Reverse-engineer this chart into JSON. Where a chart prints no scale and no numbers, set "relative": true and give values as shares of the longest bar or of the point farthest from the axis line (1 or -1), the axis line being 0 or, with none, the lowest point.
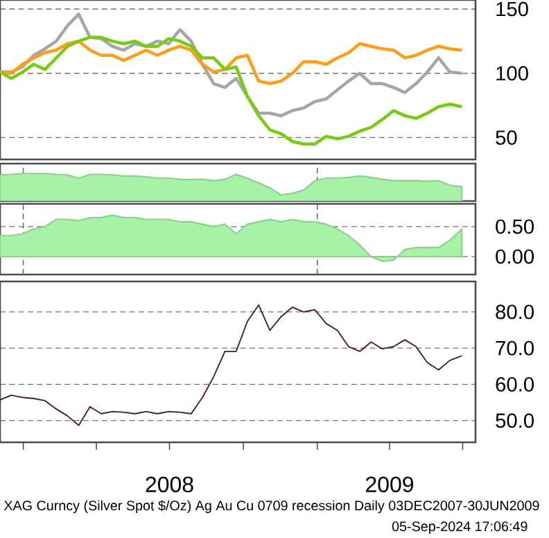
{
  "chart_data": [
    {
      "type": "line",
      "tick_labels": "y",
      "grid": "y",
      "x": [
        "2007-12-03",
        "2007-12-17",
        "2007-12-31",
        "2008-01-14",
        "2008-01-28",
        "2008-02-11",
        "2008-02-25",
        "2008-03-10",
        "2008-03-24",
        "2008-04-07",
        "2008-04-21",
        "2008-05-05",
        "2008-05-19",
        "2008-06-02",
        "2008-06-16",
        "2008-06-30",
        "2008-07-14",
        "2008-07-28",
        "2008-08-11",
        "2008-08-25",
        "2008-09-08",
        "2008-09-22",
        "2008-10-06",
        "2008-10-20",
        "2008-11-03",
        "2008-11-17",
        "2008-12-01",
        "2008-12-15",
        "2008-12-29",
        "2009-01-12",
        "2009-01-26",
        "2009-02-09",
        "2009-02-23",
        "2009-03-09",
        "2009-03-23",
        "2009-04-06",
        "2009-04-20",
        "2009-05-04",
        "2009-05-18",
        "2009-06-01",
        "2009-06-15",
        "2009-06-30"
      ],
      "xlim": [
        "2007-12-03",
        "2009-07-17"
      ],
      "ylim": [
        33,
        157
      ],
      "yticks": [
        50,
        100,
        150
      ],
      "series": [
        {
          "color": "#a6a6a6",
          "values": [
            101,
            101,
            105,
            114,
            119,
            125,
            137,
            146,
            128,
            127,
            121,
            118,
            123,
            121,
            125,
            123,
            134,
            125,
            107,
            92,
            89,
            96,
            82,
            69,
            69,
            67,
            71,
            73,
            78,
            80,
            87,
            94,
            100,
            92,
            92,
            89,
            85,
            92,
            101,
            112,
            101,
            100
          ]
        },
        {
          "color": "#ff9d1a",
          "values": [
            101,
            100,
            107,
            112,
            116,
            118,
            123,
            125,
            118,
            114,
            114,
            110,
            114,
            118,
            114,
            118,
            121,
            118,
            107,
            101,
            103,
            112,
            114,
            94,
            92,
            94,
            100,
            109,
            109,
            107,
            112,
            116,
            123,
            121,
            119,
            118,
            112,
            114,
            118,
            121,
            119,
            118
          ]
        },
        {
          "color": "#77cc11",
          "values": [
            101,
            96,
            101,
            107,
            103,
            112,
            121,
            125,
            128,
            128,
            125,
            123,
            125,
            121,
            121,
            127,
            125,
            121,
            112,
            112,
            103,
            105,
            82,
            67,
            56,
            53,
            47,
            45,
            45,
            51,
            49,
            51,
            55,
            58,
            64,
            71,
            67,
            65,
            69,
            74,
            76,
            74
          ]
        }
      ]
    },
    {
      "type": "area",
      "relative": true,
      "tick_labels": false,
      "x": [
        "2007-12-03",
        "2007-12-17",
        "2007-12-31",
        "2008-01-14",
        "2008-01-28",
        "2008-02-11",
        "2008-02-25",
        "2008-03-10",
        "2008-03-24",
        "2008-04-07",
        "2008-04-21",
        "2008-05-05",
        "2008-05-19",
        "2008-06-02",
        "2008-06-16",
        "2008-06-30",
        "2008-07-14",
        "2008-07-28",
        "2008-08-11",
        "2008-08-25",
        "2008-09-08",
        "2008-09-22",
        "2008-10-06",
        "2008-10-20",
        "2008-11-03",
        "2008-11-17",
        "2008-12-01",
        "2008-12-15",
        "2008-12-29",
        "2009-01-12",
        "2009-01-26",
        "2009-02-09",
        "2009-02-23",
        "2009-03-09",
        "2009-03-23",
        "2009-04-06",
        "2009-04-20",
        "2009-05-04",
        "2009-05-18",
        "2009-06-01",
        "2009-06-15",
        "2009-06-30"
      ],
      "xlim": [
        "2007-12-03",
        "2009-07-17"
      ],
      "ref_lines": [
        {
          "axis": "x",
          "value": "2008-01-01",
          "line_style": "dashed"
        },
        {
          "axis": "x",
          "value": "2009-01-01",
          "line_style": "dashed"
        }
      ],
      "series": [
        {
          "color": "#a8f2a8",
          "values": [
            0.95,
            0.97,
            1,
            1,
            1,
            0.97,
            0.95,
            0.83,
            0.97,
            0.97,
            0.95,
            0.91,
            0.91,
            0.88,
            0.83,
            0.83,
            0.79,
            0.78,
            0.79,
            0.74,
            0.79,
            0.97,
            0.83,
            0.66,
            0.48,
            0.22,
            0.28,
            0.4,
            0.74,
            0.83,
            0.83,
            0.86,
            0.91,
            0.86,
            0.79,
            0.74,
            0.74,
            0.74,
            0.72,
            0.74,
            0.57,
            0.52
          ]
        }
      ]
    },
    {
      "type": "area",
      "tick_labels": "y",
      "grid": "y",
      "x": [
        "2007-12-03",
        "2007-12-17",
        "2007-12-31",
        "2008-01-14",
        "2008-01-28",
        "2008-02-11",
        "2008-02-25",
        "2008-03-10",
        "2008-03-24",
        "2008-04-07",
        "2008-04-21",
        "2008-05-05",
        "2008-05-19",
        "2008-06-02",
        "2008-06-16",
        "2008-06-30",
        "2008-07-14",
        "2008-07-28",
        "2008-08-11",
        "2008-08-25",
        "2008-09-08",
        "2008-09-22",
        "2008-10-06",
        "2008-10-20",
        "2008-11-03",
        "2008-11-17",
        "2008-12-01",
        "2008-12-15",
        "2008-12-29",
        "2009-01-12",
        "2009-01-26",
        "2009-02-09",
        "2009-02-23",
        "2009-03-09",
        "2009-03-23",
        "2009-04-06",
        "2009-04-20",
        "2009-05-04",
        "2009-05-18",
        "2009-06-01",
        "2009-06-15",
        "2009-06-30"
      ],
      "xlim": [
        "2007-12-03",
        "2009-07-17"
      ],
      "ylim": [
        -0.3,
        0.88
      ],
      "yticks": [
        {
          "value": 0,
          "label": "0.00"
        },
        {
          "value": 0.5,
          "label": "0.50"
        }
      ],
      "ref_lines": [
        {
          "axis": "x",
          "value": "2008-01-01",
          "line_style": "dashed"
        },
        {
          "axis": "x",
          "value": "2009-01-01",
          "line_style": "dashed"
        }
      ],
      "series": [
        {
          "color": "#a8f2a8",
          "values": [
            0.35,
            0.35,
            0.38,
            0.46,
            0.5,
            0.62,
            0.62,
            0.6,
            0.65,
            0.65,
            0.69,
            0.65,
            0.65,
            0.62,
            0.62,
            0.62,
            0.58,
            0.58,
            0.54,
            0.5,
            0.54,
            0.38,
            0.54,
            0.58,
            0.62,
            0.58,
            0.62,
            0.58,
            0.58,
            0.54,
            0.46,
            0.35,
            0.19,
            0,
            -0.08,
            -0.06,
            0.12,
            0.15,
            0.15,
            0.15,
            0.27,
            0.46
          ]
        }
      ]
    },
    {
      "type": "line",
      "grid": "y",
      "x": [
        "2007-12-03",
        "2007-12-17",
        "2007-12-31",
        "2008-01-14",
        "2008-01-28",
        "2008-02-11",
        "2008-02-25",
        "2008-03-10",
        "2008-03-24",
        "2008-04-07",
        "2008-04-21",
        "2008-05-05",
        "2008-05-19",
        "2008-06-02",
        "2008-06-16",
        "2008-06-30",
        "2008-07-14",
        "2008-07-28",
        "2008-08-11",
        "2008-08-25",
        "2008-09-08",
        "2008-09-22",
        "2008-10-06",
        "2008-10-20",
        "2008-11-03",
        "2008-11-17",
        "2008-12-01",
        "2008-12-15",
        "2008-12-29",
        "2009-01-12",
        "2009-01-26",
        "2009-02-09",
        "2009-02-23",
        "2009-03-09",
        "2009-03-23",
        "2009-04-06",
        "2009-04-20",
        "2009-05-04",
        "2009-05-18",
        "2009-06-01",
        "2009-06-15",
        "2009-06-30"
      ],
      "xlim": [
        "2007-12-03",
        "2009-07-17"
      ],
      "ylim": [
        44,
        88.4
      ],
      "yticks": [
        {
          "value": 50,
          "label": "50.0"
        },
        {
          "value": 60,
          "label": "60.0"
        },
        {
          "value": 70,
          "label": "70.0"
        },
        {
          "value": 80,
          "label": "80.0"
        }
      ],
      "xticks": [
        {
          "value": "2008-01-01",
          "label": null
        },
        {
          "value": "2008-04-01",
          "label": null
        },
        {
          "value": "2008-07-01",
          "label": "2008"
        },
        {
          "value": "2008-10-01",
          "label": null
        },
        {
          "value": "2009-01-01",
          "label": null
        },
        {
          "value": "2009-04-01",
          "label": "2009"
        },
        {
          "value": "2009-07-01",
          "label": null
        }
      ],
      "annotations": [
        "XAG Curncy (Silver Spot  $/Oz) Ag Au Cu 0709 recession  Daily 03DEC2007-30JUN2009",
        "05-Sep-2024 17:06:49"
      ],
      "series": [
        {
          "color": "#4d1a1f",
          "values": [
            55.7,
            57.0,
            56.4,
            56.1,
            55.5,
            53.2,
            51.3,
            48.7,
            53.8,
            51.9,
            52.5,
            52.3,
            51.9,
            52.5,
            51.9,
            52.5,
            52.3,
            51.9,
            56.4,
            62.1,
            69.1,
            69.1,
            77.4,
            81.9,
            74.9,
            78.7,
            81.3,
            80.0,
            80.6,
            76.8,
            74.9,
            70.4,
            69.1,
            71.7,
            69.8,
            70.4,
            72.3,
            70.4,
            66.0,
            64.0,
            66.6,
            67.9
          ]
        }
      ]
    }
  ]
}
